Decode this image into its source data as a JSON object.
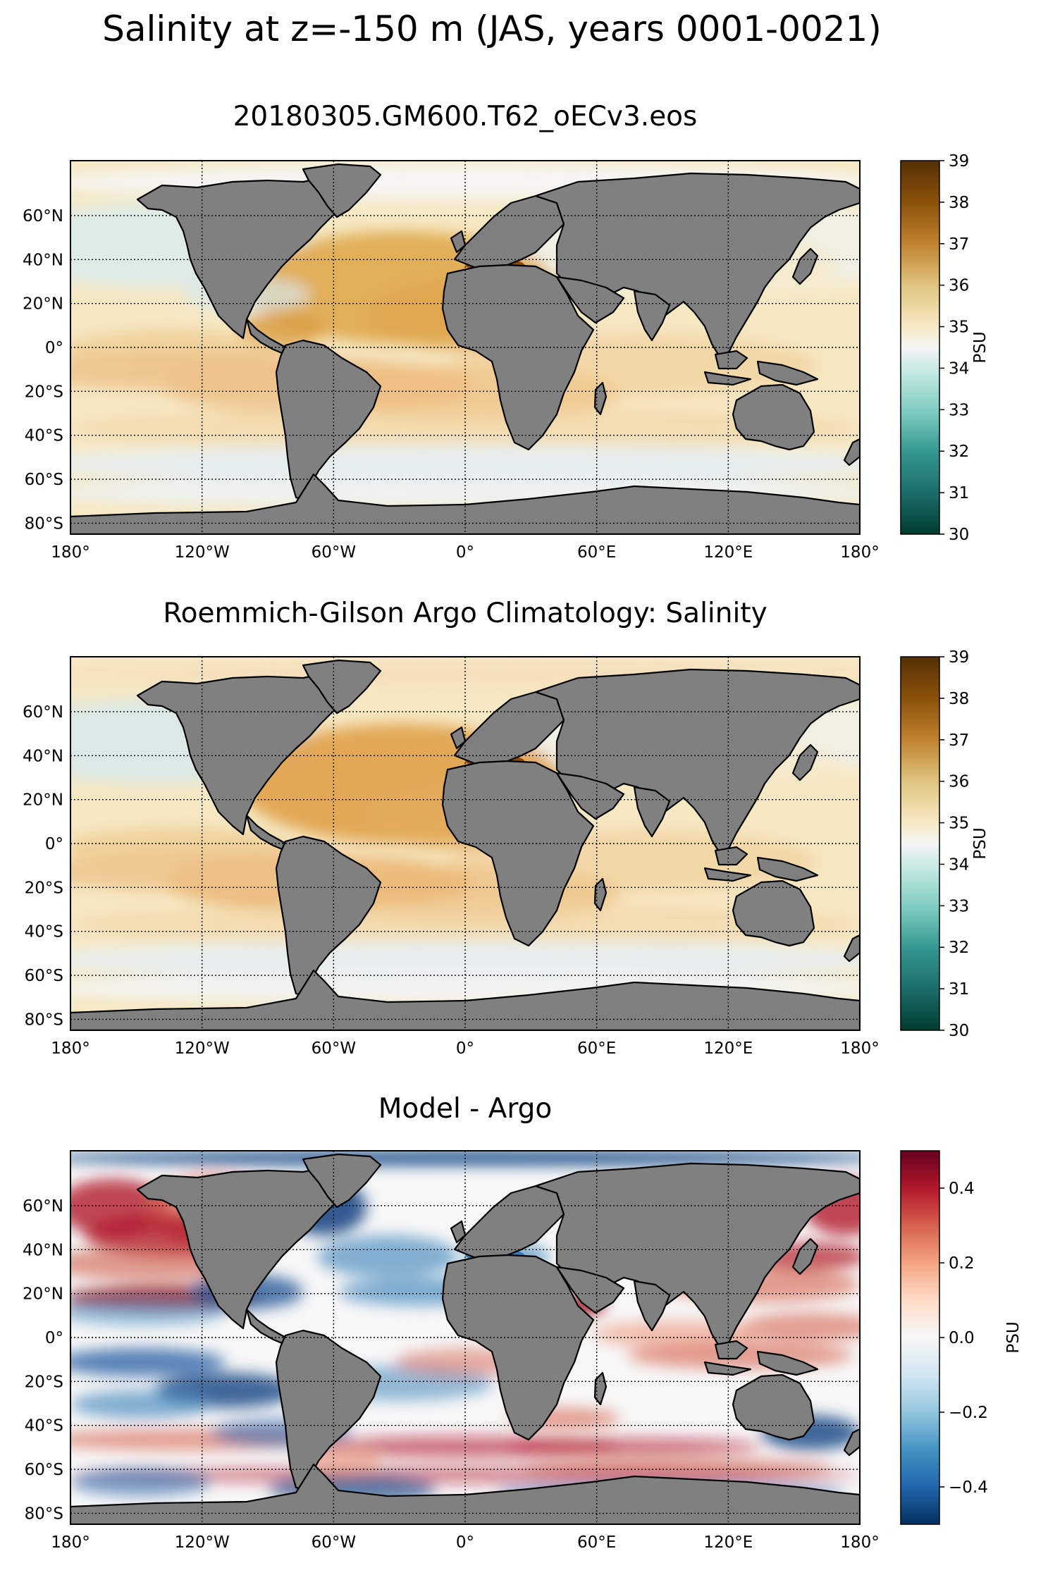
{
  "figure": {
    "suptitle": "Salinity at z=-150 m (JAS, years 0001-0021)"
  },
  "panels": [
    {
      "id": "model",
      "title": "20180305.GM600.T62_oECv3.eos",
      "cmap": "BrBG_r",
      "colorbar": {
        "label": "PSU",
        "min": 30,
        "max": 39,
        "ticks": [
          "30",
          "31",
          "32",
          "33",
          "34",
          "35",
          "36",
          "37",
          "38",
          "39"
        ]
      }
    },
    {
      "id": "obs",
      "title": "Roemmich-Gilson Argo Climatology: Salinity",
      "cmap": "BrBG_r",
      "colorbar": {
        "label": "PSU",
        "min": 30,
        "max": 39,
        "ticks": [
          "30",
          "31",
          "32",
          "33",
          "34",
          "35",
          "36",
          "37",
          "38",
          "39"
        ]
      }
    },
    {
      "id": "diff",
      "title": "Model - Argo",
      "cmap": "RdBu_r",
      "colorbar": {
        "label": "PSU",
        "min": -0.5,
        "max": 0.5,
        "ticks": [
          "−0.4",
          "−0.2",
          "0.0",
          "0.2",
          "0.4"
        ],
        "tick_values": [
          -0.4,
          -0.2,
          0.0,
          0.2,
          0.4
        ]
      }
    }
  ],
  "axes": {
    "lon_ticks": [
      "180°",
      "120°W",
      "60°W",
      "0°",
      "60°E",
      "120°E",
      "180°"
    ],
    "lon_values": [
      -180,
      -120,
      -60,
      0,
      60,
      120,
      180
    ],
    "lat_ticks": [
      "60°N",
      "40°N",
      "20°N",
      "0°",
      "20°S",
      "40°S",
      "60°S",
      "80°S"
    ],
    "lat_values": [
      60,
      40,
      20,
      0,
      -20,
      -40,
      -60,
      -80
    ],
    "lat_range": [
      -85,
      85
    ]
  },
  "colors": {
    "land": "#808080",
    "brbg_r": [
      "#003c30",
      "#35978f",
      "#80cdc1",
      "#c7eae5",
      "#f5f5f5",
      "#f6e8c3",
      "#dfc27d",
      "#bf812d",
      "#8c510a",
      "#543005"
    ],
    "rdbu_r": [
      "#053061",
      "#2166ac",
      "#4393c3",
      "#92c5de",
      "#d1e5f0",
      "#f7f7f7",
      "#fddbc7",
      "#f4a582",
      "#d6604d",
      "#b2182b",
      "#67001f"
    ]
  }
}
